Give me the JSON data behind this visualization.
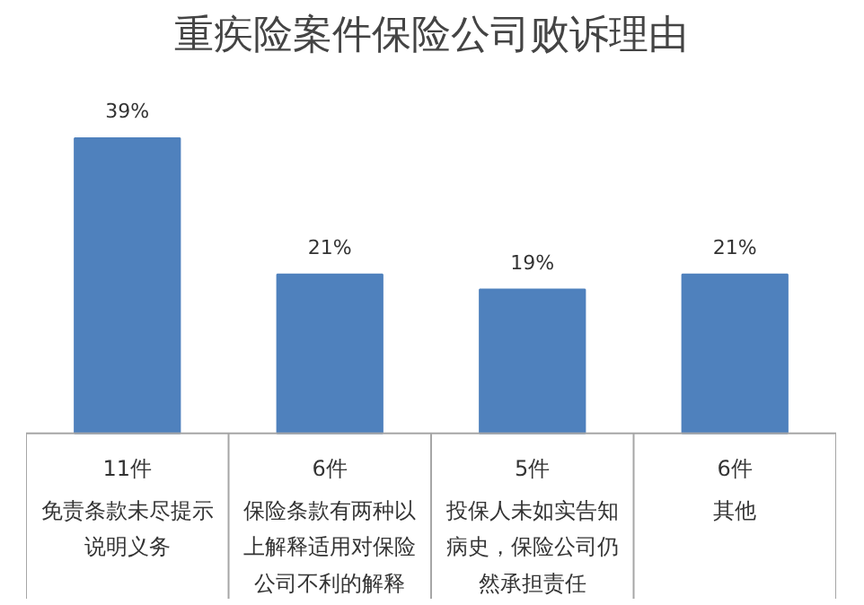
{
  "chart_data": {
    "type": "bar",
    "title": "重疾险案件保险公司败诉理由",
    "categories": [
      "免责条款未尽提示说明义务",
      "保险条款有两种以上解释适用对保险公司不利的解释",
      "投保人未如实告知病史，保险公司仍然承担责任",
      "其他"
    ],
    "annotations": [
      "11件",
      "6件",
      "5件",
      "6件"
    ],
    "values": [
      39,
      21,
      19,
      21
    ],
    "value_labels": [
      "39%",
      "21%",
      "19%",
      "21%"
    ],
    "color": "#4f81bd"
  }
}
